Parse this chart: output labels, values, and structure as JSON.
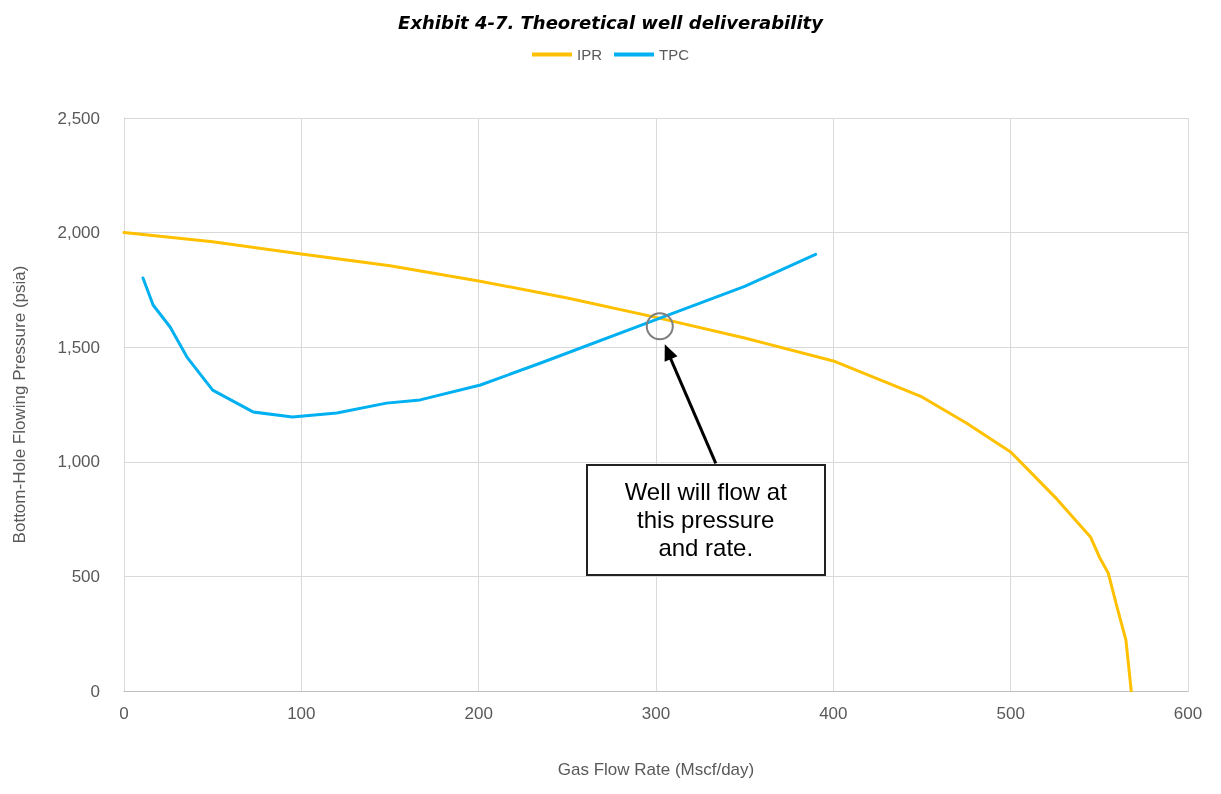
{
  "chart_data": {
    "type": "line",
    "title": "Exhibit 4-7. Theoretical well deliverability",
    "xlabel": "Gas Flow Rate (Mscf/day)",
    "ylabel": "Bottom-Hole Flowing Pressure (psia)",
    "series": [
      {
        "name": "IPR",
        "color": "#ffc000",
        "x": [
          0,
          50,
          100,
          150,
          200,
          250,
          300,
          350,
          400,
          450,
          475,
          500,
          525,
          545,
          550,
          555,
          560,
          565,
          568
        ],
        "values": [
          2000,
          1960,
          1907,
          1855,
          1789,
          1715,
          1630,
          1540,
          1440,
          1283,
          1169,
          1043,
          846,
          672,
          585,
          515,
          366,
          222,
          0
        ]
      },
      {
        "name": "TPC",
        "color": "#00b0f0",
        "x": [
          10.7,
          16.4,
          26,
          35.5,
          50,
          73,
          95,
          120,
          148,
          167,
          201,
          235,
          300,
          350,
          390
        ],
        "values": [
          1802,
          1684,
          1588,
          1457,
          1313,
          1217,
          1195,
          1213,
          1256,
          1270,
          1335,
          1431,
          1620,
          1765,
          1905
        ]
      }
    ],
    "xlim": [
      0,
      600
    ],
    "xticks": [
      0,
      100,
      200,
      300,
      400,
      500,
      600
    ],
    "ylim": [
      0,
      2500
    ],
    "yticks": [
      0,
      500,
      {
        "value": 1000,
        "label": "1,000"
      },
      {
        "value": 1500,
        "label": "1,500"
      },
      {
        "value": 2000,
        "label": "2,000"
      },
      {
        "value": 2500,
        "label": "2,500"
      }
    ],
    "grid": true,
    "legend": "top",
    "marker": "none",
    "line_style": "solid",
    "annotations": [
      "Well will flow at this pressure and rate."
    ]
  }
}
